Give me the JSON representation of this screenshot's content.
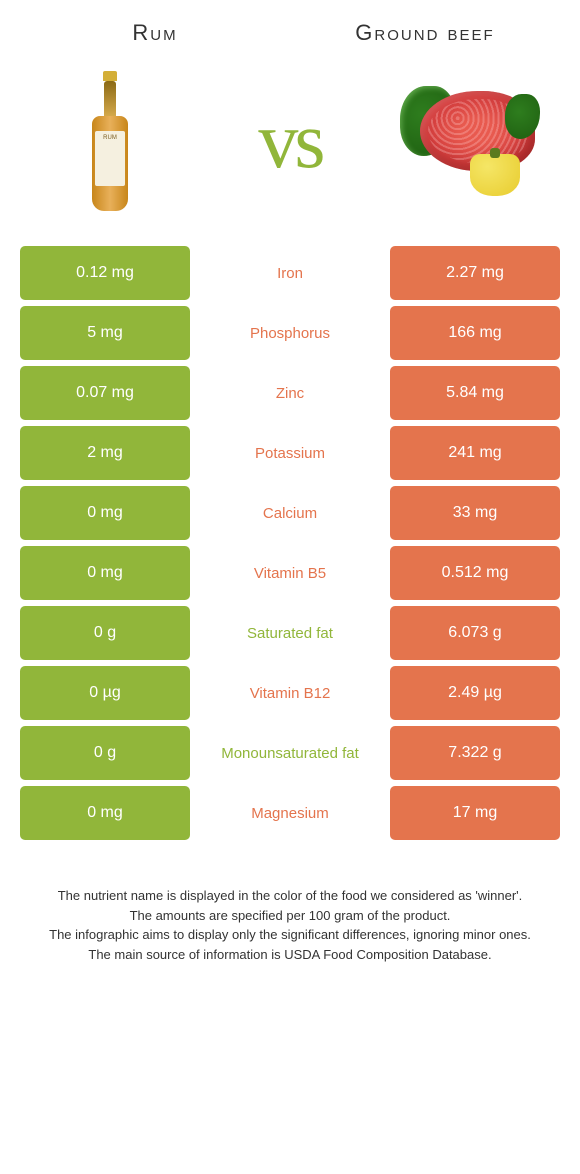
{
  "colors": {
    "left": "#91b63a",
    "right": "#e4744d",
    "vs": "#91b63a"
  },
  "header": {
    "left_title": "Rum",
    "right_title": "Ground beef",
    "vs_label": "vs"
  },
  "rows": [
    {
      "left_value": "0.12 mg",
      "nutrient": "Iron",
      "right_value": "2.27 mg",
      "winner": "right"
    },
    {
      "left_value": "5 mg",
      "nutrient": "Phosphorus",
      "right_value": "166 mg",
      "winner": "right"
    },
    {
      "left_value": "0.07 mg",
      "nutrient": "Zinc",
      "right_value": "5.84 mg",
      "winner": "right"
    },
    {
      "left_value": "2 mg",
      "nutrient": "Potassium",
      "right_value": "241 mg",
      "winner": "right"
    },
    {
      "left_value": "0 mg",
      "nutrient": "Calcium",
      "right_value": "33 mg",
      "winner": "right"
    },
    {
      "left_value": "0 mg",
      "nutrient": "Vitamin B5",
      "right_value": "0.512 mg",
      "winner": "right"
    },
    {
      "left_value": "0 g",
      "nutrient": "Saturated fat",
      "right_value": "6.073 g",
      "winner": "left"
    },
    {
      "left_value": "0 µg",
      "nutrient": "Vitamin B12",
      "right_value": "2.49 µg",
      "winner": "right"
    },
    {
      "left_value": "0 g",
      "nutrient": "Monounsaturated fat",
      "right_value": "7.322 g",
      "winner": "left"
    },
    {
      "left_value": "0 mg",
      "nutrient": "Magnesium",
      "right_value": "17 mg",
      "winner": "right"
    }
  ],
  "footer": {
    "line1": "The nutrient name is displayed in the color of the food we considered as 'winner'.",
    "line2": "The amounts are specified per 100 gram of the product.",
    "line3": "The infographic aims to display only the significant differences, ignoring minor ones.",
    "line4": "The main source of information is USDA Food Composition Database."
  }
}
